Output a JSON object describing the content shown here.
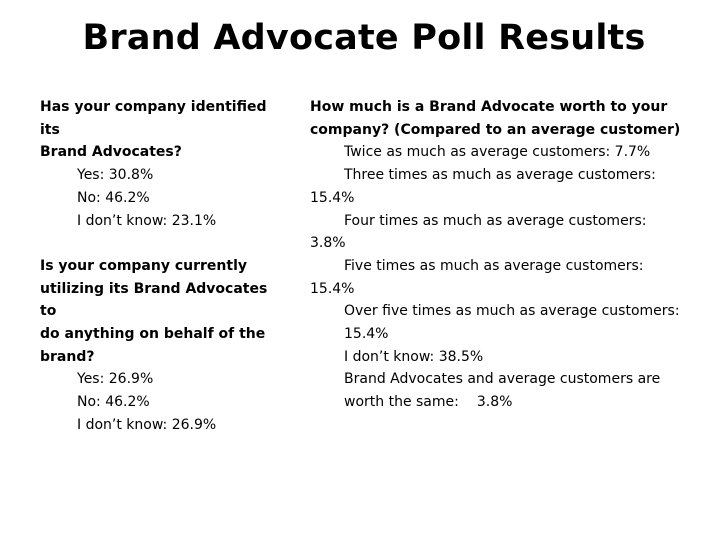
{
  "title": "Brand Advocate Poll Results",
  "left": {
    "q1": {
      "question_lines": [
        "Has your company identified its",
        "Brand Advocates?"
      ],
      "answers": [
        "Yes: 30.8%",
        "No: 46.2%",
        "I don’t know: 23.1%"
      ]
    },
    "q2": {
      "question_lines": [
        "Is your company currently",
        "utilizing its Brand Advocates to",
        "do anything on behalf of the",
        "brand?"
      ],
      "answers": [
        "Yes: 26.9%",
        "No: 46.2%",
        "I don’t know: 26.9%"
      ]
    }
  },
  "right": {
    "question_lines": [
      "How much is a Brand Advocate worth to your",
      "company? (Compared to an average customer)"
    ],
    "answers": {
      "a1": "Twice as much as average customers: 7.7%",
      "a2_line1": "Three times as much as average customers:",
      "a2_line2": "15.4%",
      "a3_line1": "Four times as much as average customers:",
      "a3_line2": "3.8%",
      "a4_line1": "Five times as much as average customers:",
      "a4_line2": "15.4%",
      "a5_line1": "Over five times as much as average customers:",
      "a5_line2": "15.4%",
      "a6": "I don’t know: 38.5%",
      "a7_line1": "Brand Advocates and average customers are",
      "a7_line2_text": "worth the same:",
      "a7_line2_value": "3.8%"
    }
  }
}
